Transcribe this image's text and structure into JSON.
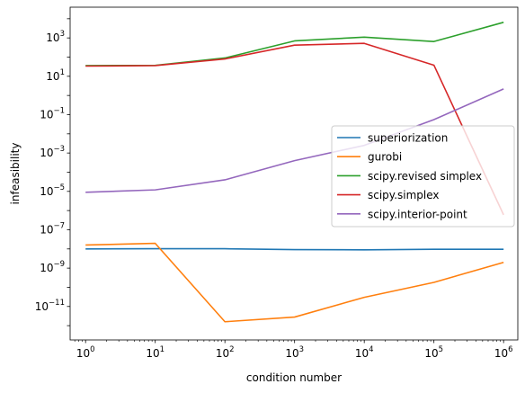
{
  "chart_data": {
    "type": "line",
    "xlabel": "condition number",
    "ylabel": "infeasibility",
    "x_scale": "log",
    "y_scale": "log",
    "xlim": [
      0.6,
      1600000.0
    ],
    "ylim": [
      1.8e-13,
      40000.0
    ],
    "grid": false,
    "legend_position": "center-right",
    "x_ticks": [
      {
        "value": 1,
        "base": "10",
        "exp": "0"
      },
      {
        "value": 10,
        "base": "10",
        "exp": "1"
      },
      {
        "value": 100,
        "base": "10",
        "exp": "2"
      },
      {
        "value": 1000,
        "base": "10",
        "exp": "3"
      },
      {
        "value": 10000,
        "base": "10",
        "exp": "4"
      },
      {
        "value": 100000,
        "base": "10",
        "exp": "5"
      },
      {
        "value": 1000000,
        "base": "10",
        "exp": "6"
      }
    ],
    "y_ticks": [
      {
        "value": 1e-11,
        "base": "10",
        "exp": "−11"
      },
      {
        "value": 1e-09,
        "base": "10",
        "exp": "−9"
      },
      {
        "value": 1e-07,
        "base": "10",
        "exp": "−7"
      },
      {
        "value": 1e-05,
        "base": "10",
        "exp": "−5"
      },
      {
        "value": 0.001,
        "base": "10",
        "exp": "−3"
      },
      {
        "value": 0.1,
        "base": "10",
        "exp": "−1"
      },
      {
        "value": 10,
        "base": "10",
        "exp": "1"
      },
      {
        "value": 1000,
        "base": "10",
        "exp": "3"
      }
    ],
    "x": [
      1,
      10,
      100,
      1000,
      10000,
      100000,
      1000000
    ],
    "series": [
      {
        "name": "superiorization",
        "color": "#1f77b4",
        "values": [
          1e-08,
          1.02e-08,
          1.02e-08,
          9.2e-09,
          9e-09,
          9.6e-09,
          9.6e-09
        ]
      },
      {
        "name": "gurobi",
        "color": "#ff7f0e",
        "values": [
          1.6e-08,
          1.95e-08,
          1.6e-12,
          2.8e-12,
          3e-11,
          1.8e-10,
          2e-09
        ]
      },
      {
        "name": "scipy.revised simplex",
        "color": "#2ca02c",
        "values": [
          36,
          37,
          90,
          700,
          1100,
          650,
          6500
        ]
      },
      {
        "name": "scipy.simplex",
        "color": "#d62728",
        "values": [
          34,
          36,
          80,
          420,
          520,
          38,
          6e-07
        ]
      },
      {
        "name": "scipy.interior-point",
        "color": "#9467bd",
        "values": [
          9e-06,
          1.2e-05,
          4e-05,
          0.0004,
          0.0025,
          0.055,
          2.2
        ]
      }
    ]
  }
}
